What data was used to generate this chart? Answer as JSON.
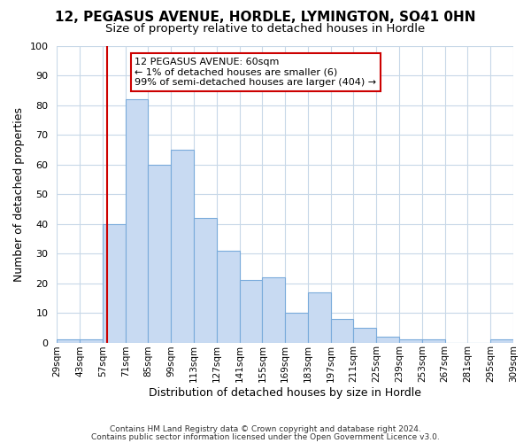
{
  "title1": "12, PEGASUS AVENUE, HORDLE, LYMINGTON, SO41 0HN",
  "title2": "Size of property relative to detached houses in Hordle",
  "xlabel": "Distribution of detached houses by size in Hordle",
  "ylabel": "Number of detached properties",
  "bins": [
    29,
    43,
    57,
    71,
    85,
    99,
    113,
    127,
    141,
    155,
    169,
    183,
    197,
    211,
    225,
    239,
    253,
    267,
    281,
    295,
    309
  ],
  "bin_labels": [
    "29sqm",
    "43sqm",
    "57sqm",
    "71sqm",
    "85sqm",
    "99sqm",
    "113sqm",
    "127sqm",
    "141sqm",
    "155sqm",
    "169sqm",
    "183sqm",
    "197sqm",
    "211sqm",
    "225sqm",
    "239sqm",
    "253sqm",
    "267sqm",
    "281sqm",
    "295sqm",
    "309sqm"
  ],
  "counts": [
    1,
    1,
    40,
    82,
    60,
    65,
    42,
    31,
    21,
    22,
    10,
    17,
    8,
    5,
    2,
    1,
    1,
    0,
    0,
    1
  ],
  "bar_color": "#c8daf2",
  "bar_edge_color": "#7aabdb",
  "vline_x": 60,
  "vline_color": "#cc0000",
  "annotation_title": "12 PEGASUS AVENUE: 60sqm",
  "annotation_line1": "← 1% of detached houses are smaller (6)",
  "annotation_line2": "99% of semi-detached houses are larger (404) →",
  "annotation_box_color": "#ffffff",
  "annotation_box_edge": "#cc0000",
  "ylim": [
    0,
    100
  ],
  "yticks": [
    0,
    10,
    20,
    30,
    40,
    50,
    60,
    70,
    80,
    90,
    100
  ],
  "footer1": "Contains HM Land Registry data © Crown copyright and database right 2024.",
  "footer2": "Contains public sector information licensed under the Open Government Licence v3.0.",
  "bg_color": "#ffffff",
  "plot_bg_color": "#ffffff",
  "grid_color": "#c8d8e8",
  "title1_fontsize": 11,
  "title2_fontsize": 9.5,
  "xlabel_fontsize": 9,
  "ylabel_fontsize": 9
}
